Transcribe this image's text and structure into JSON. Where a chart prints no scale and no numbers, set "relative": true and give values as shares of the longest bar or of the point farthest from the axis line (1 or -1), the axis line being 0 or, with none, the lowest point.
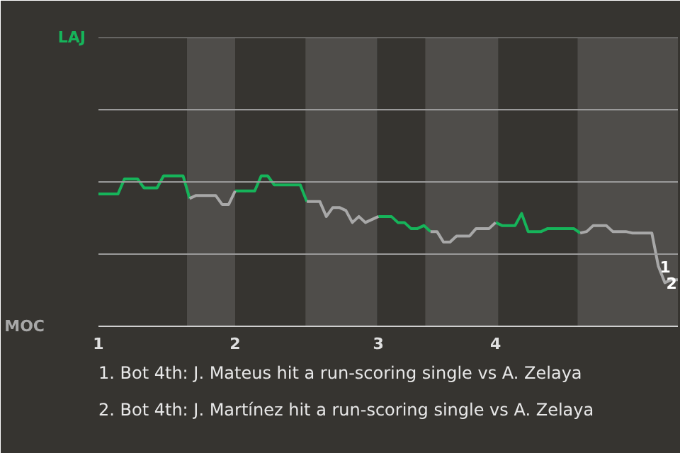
{
  "chart_data": {
    "type": "line",
    "relative": true,
    "categories": [
      "1",
      null,
      null,
      null,
      null,
      null,
      null,
      null,
      null,
      null,
      null,
      null,
      null,
      null,
      null,
      null,
      null,
      null,
      null,
      null,
      null,
      "2",
      null,
      null,
      null,
      null,
      null,
      null,
      null,
      null,
      null,
      null,
      null,
      null,
      null,
      null,
      null,
      null,
      null,
      null,
      null,
      null,
      null,
      "3",
      null,
      null,
      null,
      null,
      null,
      null,
      null,
      null,
      null,
      null,
      null,
      null,
      null,
      null,
      null,
      null,
      null,
      "4",
      null,
      null,
      null,
      null,
      null,
      null,
      null,
      null,
      null,
      null,
      null,
      null,
      null,
      null,
      null,
      null,
      null,
      null,
      null,
      null,
      null,
      null,
      null,
      null,
      null,
      null,
      null,
      null
    ],
    "marker": "none",
    "line_style": "solid",
    "ref_lines": [
      {
        "axis": "y",
        "value": 0.48,
        "color": "#9a9a9a"
      },
      {
        "axis": "y",
        "value": 0.96,
        "color": "#9a9a9a"
      },
      {
        "axis": "y",
        "value": 1.44,
        "color": "#9a9a9a"
      },
      {
        "axis": "y",
        "value": 1.92,
        "color": "#9a9a9a"
      }
    ],
    "series": [
      {
        "name": "LAJ",
        "color": "#16b45a",
        "values": [
          0.88,
          0.88,
          0.88,
          0.88,
          0.98,
          0.98,
          0.98,
          0.92,
          0.92,
          0.92,
          1,
          1,
          1,
          1,
          0.85,
          null,
          null,
          null,
          null,
          null,
          null,
          0.9,
          0.9,
          0.9,
          0.9,
          1,
          1,
          0.94,
          0.94,
          0.94,
          0.94,
          0.94,
          0.83,
          null,
          null,
          null,
          null,
          null,
          null,
          null,
          null,
          null,
          null,
          0.73,
          0.73,
          0.73,
          0.69,
          0.69,
          0.65,
          0.65,
          0.67,
          0.63,
          null,
          null,
          null,
          null,
          null,
          null,
          null,
          null,
          null,
          0.69,
          0.67,
          0.67,
          0.67,
          0.75,
          0.63,
          0.63,
          0.63,
          0.65,
          0.65,
          0.65,
          0.65,
          0.65,
          0.62,
          null,
          null,
          null,
          null,
          null,
          null,
          null,
          null,
          null,
          null,
          null,
          null,
          null,
          null,
          null
        ]
      },
      {
        "name": "MOC",
        "color": "#a8a8a8",
        "values": [
          null,
          null,
          null,
          null,
          null,
          null,
          null,
          null,
          null,
          null,
          null,
          null,
          null,
          null,
          0.85,
          0.87,
          0.87,
          0.87,
          0.87,
          0.81,
          0.81,
          0.9,
          null,
          null,
          null,
          null,
          null,
          null,
          null,
          null,
          null,
          null,
          0.83,
          0.83,
          0.83,
          0.73,
          0.79,
          0.79,
          0.77,
          0.69,
          0.73,
          0.69,
          0.71,
          0.73,
          null,
          null,
          null,
          null,
          null,
          null,
          null,
          0.63,
          0.63,
          0.56,
          0.56,
          0.6,
          0.6,
          0.6,
          0.65,
          0.65,
          0.65,
          0.69,
          null,
          null,
          null,
          null,
          null,
          null,
          null,
          null,
          null,
          null,
          null,
          null,
          0.62,
          0.63,
          0.67,
          0.67,
          0.67,
          0.63,
          0.63,
          0.63,
          0.62,
          0.62,
          0.62,
          0.62,
          0.4,
          0.29,
          0.31,
          0.31
        ]
      }
    ],
    "annotations": [
      {
        "text": "1",
        "y": 0.4
      },
      {
        "text": "2",
        "y": 0.29
      },
      "1. Bot 4th: J. Mateus hit a run-scoring single vs A. Zelaya",
      "2. Bot 4th: J. Martínez hit a run-scoring single vs A. Zelaya"
    ]
  }
}
